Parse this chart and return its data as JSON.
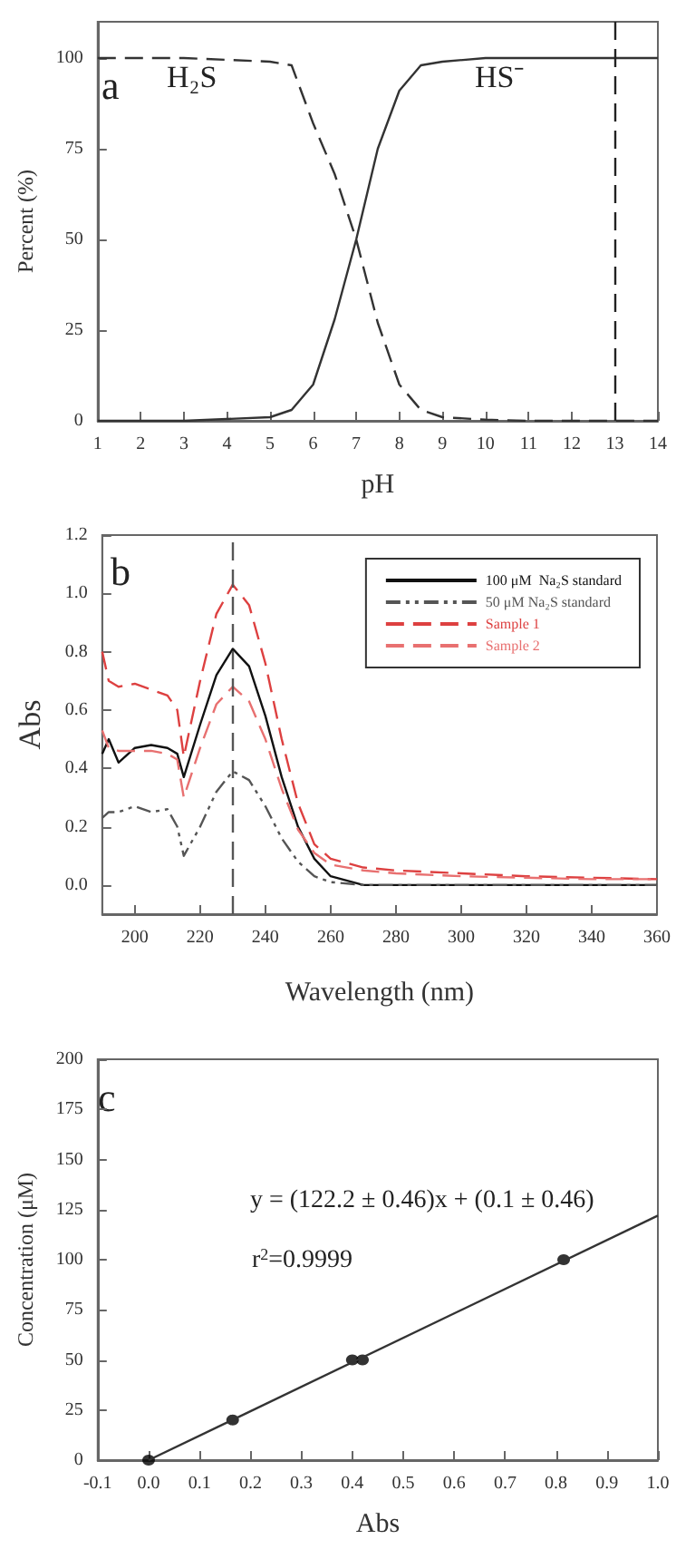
{
  "chart_data": [
    {
      "type": "line",
      "xlabel": "pH",
      "ylabel": "Percent (%)",
      "xlim": [
        1,
        14
      ],
      "xticks": [
        1,
        2,
        3,
        4,
        5,
        6,
        7,
        8,
        9,
        10,
        11,
        12,
        13,
        14
      ],
      "ylim": [
        0,
        110
      ],
      "yticks": [
        0,
        25,
        50,
        75,
        100
      ],
      "marker": "none",
      "annotations": [
        "a",
        "H₂S",
        "HS⁻"
      ],
      "ref_lines": [
        {
          "axis": "x",
          "value": 13,
          "color": "#222222",
          "line_style": "dashed"
        }
      ],
      "series": [
        {
          "color": "#333333",
          "line_style": "dashed",
          "x": [
            1,
            2,
            3,
            4,
            5,
            5.5,
            6,
            6.5,
            7,
            7.5,
            8,
            8.5,
            9,
            10,
            11,
            12,
            13,
            14
          ],
          "values": [
            100,
            100,
            100,
            99.5,
            99,
            98,
            82,
            68,
            50,
            27,
            10,
            3,
            1,
            0.3,
            0,
            0,
            0,
            0
          ]
        },
        {
          "color": "#333333",
          "line_style": "solid",
          "x": [
            1,
            2,
            3,
            4,
            5,
            5.5,
            6,
            6.5,
            7,
            7.5,
            8,
            8.5,
            9,
            10,
            11,
            12,
            13,
            14
          ],
          "values": [
            0,
            0,
            0,
            0.5,
            1,
            3,
            10,
            28,
            50,
            75,
            91,
            98,
            99,
            100,
            100,
            100,
            100,
            100
          ]
        }
      ]
    },
    {
      "type": "line",
      "xlabel": "Wavelength (nm)",
      "ylabel": "Abs",
      "xlim": [
        190,
        360
      ],
      "xticks": [
        200,
        220,
        240,
        260,
        280,
        300,
        320,
        340,
        360
      ],
      "ylim": [
        -0.1,
        1.2
      ],
      "yticks": [
        {
          "value": 0,
          "label": "0.0"
        },
        0.2,
        0.4,
        0.6,
        0.8,
        {
          "value": 1,
          "label": "1.0"
        },
        1.2
      ],
      "marker": "none",
      "legend": "top right",
      "annotations": [
        "b"
      ],
      "ref_lines": [
        {
          "axis": "x",
          "value": 230,
          "color": "#555555",
          "line_style": "dashed"
        }
      ],
      "x": [
        190,
        192,
        195,
        200,
        205,
        210,
        213,
        215,
        220,
        225,
        230,
        235,
        240,
        245,
        250,
        255,
        260,
        270,
        280,
        300,
        320,
        340,
        360
      ],
      "series": [
        {
          "name": "100 μM  Na₂S standard",
          "color": "#111111",
          "line_style": "solid",
          "values": [
            0.45,
            0.5,
            0.42,
            0.47,
            0.48,
            0.47,
            0.45,
            0.37,
            0.55,
            0.72,
            0.81,
            0.75,
            0.58,
            0.37,
            0.2,
            0.09,
            0.03,
            0,
            0,
            0,
            0,
            0,
            0
          ]
        },
        {
          "name": "50 μM Na₂S standard",
          "color": "#555555",
          "line_style": "dotted",
          "values": [
            0.23,
            0.25,
            0.25,
            0.27,
            0.25,
            0.26,
            0.2,
            0.1,
            0.2,
            0.32,
            0.39,
            0.36,
            0.27,
            0.16,
            0.08,
            0.03,
            0.01,
            0,
            0,
            0,
            0,
            0,
            0
          ]
        },
        {
          "name": "Sample 1",
          "color": "#dd4040",
          "line_style": "dashed",
          "values": [
            0.8,
            0.7,
            0.68,
            0.69,
            0.67,
            0.65,
            0.6,
            0.44,
            0.7,
            0.93,
            1.03,
            0.96,
            0.76,
            0.5,
            0.28,
            0.14,
            0.09,
            0.06,
            0.05,
            0.04,
            0.03,
            0.025,
            0.02
          ]
        },
        {
          "name": "Sample 2",
          "color": "#e87070",
          "line_style": "dashed",
          "values": [
            0.53,
            0.47,
            0.46,
            0.46,
            0.46,
            0.45,
            0.43,
            0.3,
            0.47,
            0.62,
            0.68,
            0.63,
            0.5,
            0.33,
            0.19,
            0.11,
            0.07,
            0.05,
            0.04,
            0.03,
            0.025,
            0.02,
            0.02
          ]
        }
      ]
    },
    {
      "type": "scatter",
      "xlabel": "Abs",
      "ylabel": "Concentration (μM)",
      "xlim": [
        -0.1,
        1
      ],
      "xticks": [
        -0.1,
        {
          "value": 0,
          "label": "0.0"
        },
        0.1,
        0.2,
        0.3,
        0.4,
        0.5,
        0.6,
        0.7,
        0.8,
        0.9,
        {
          "value": 1,
          "label": "1.0"
        }
      ],
      "ylim": [
        0,
        200
      ],
      "yticks": [
        0,
        25,
        50,
        75,
        100,
        125,
        150,
        175,
        200
      ],
      "marker": "circle",
      "annotations": [
        "c",
        "y = (122.2 ± 0.46)x + (0.1 ± 0.46)",
        "r$^{2}$=0.9999"
      ],
      "series": [
        {
          "color": "#000000",
          "x": [
            0,
            0.165,
            0.4,
            0.42,
            0.815
          ],
          "values": [
            0,
            20,
            50,
            50,
            100
          ]
        },
        {
          "type": "line",
          "color": "#333333",
          "marker": "none",
          "x": [
            0,
            1
          ],
          "values": [
            0,
            122
          ]
        }
      ]
    }
  ]
}
